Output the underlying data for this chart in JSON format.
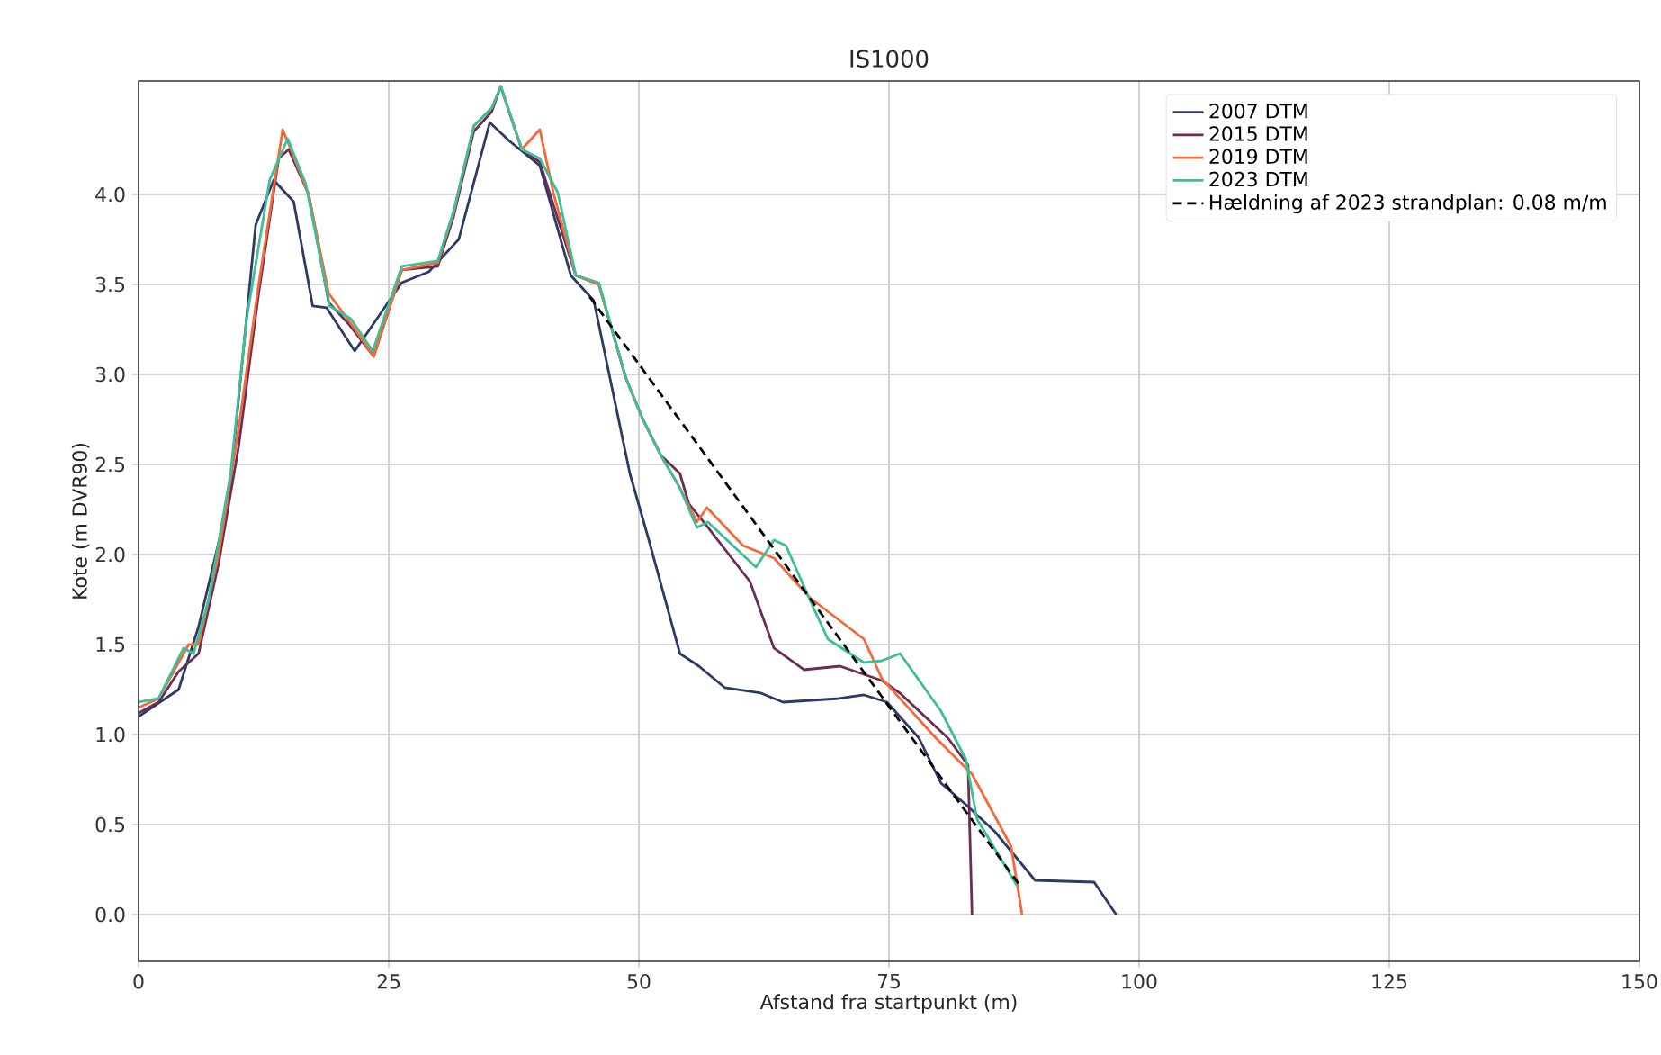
{
  "chart_data": {
    "type": "line",
    "title": "IS1000",
    "xlabel": "Afstand fra startpunkt (m)",
    "ylabel": "Kote (m DVR90)",
    "xlim": [
      0,
      150
    ],
    "ylim": [
      -0.26,
      4.63
    ],
    "xticks": [
      0,
      25,
      50,
      75,
      100,
      125,
      150
    ],
    "yticks": [
      {
        "value": 0,
        "label": "0.0"
      },
      0.5,
      {
        "value": 1,
        "label": "1.0"
      },
      1.5,
      {
        "value": 2,
        "label": "2.0"
      },
      2.5,
      {
        "value": 3,
        "label": "3.0"
      },
      3.5,
      {
        "value": 4,
        "label": "4.0"
      }
    ],
    "grid": true,
    "legend": "top right",
    "series": [
      {
        "name": "2007 DTM",
        "color": "#2e3a66",
        "x": [
          0,
          4,
          6,
          9,
          11.7,
          13.5,
          15.5,
          17.4,
          18.8,
          21.6,
          26.3,
          29,
          32,
          35.1,
          37,
          40.1,
          43.2,
          45.5,
          49.1,
          51,
          54.1,
          56,
          58.6,
          62.2,
          64.4,
          70,
          72.5,
          74.8,
          78,
          80.2,
          82.7,
          85.6,
          89.6,
          95.5,
          97.7
        ],
        "values": [
          1.1,
          1.25,
          1.6,
          2.3,
          3.83,
          4.08,
          3.96,
          3.38,
          3.37,
          3.13,
          3.51,
          3.57,
          3.75,
          4.4,
          4.3,
          4.16,
          3.55,
          3.41,
          2.45,
          2.08,
          1.45,
          1.38,
          1.26,
          1.23,
          1.18,
          1.2,
          1.22,
          1.18,
          0.98,
          0.73,
          0.61,
          0.46,
          0.19,
          0.18,
          0
        ]
      },
      {
        "name": "2015 DTM",
        "color": "#6b2d55",
        "x": [
          0,
          2,
          4,
          6,
          8,
          10,
          12,
          14,
          15,
          17,
          19,
          21,
          23.5,
          26.3,
          29.9,
          31.5,
          33.5,
          35.3,
          36.2,
          38.3,
          40.1,
          43.7,
          46,
          48.7,
          50.4,
          52.2,
          54.1,
          55,
          56.9,
          61.1,
          63.5,
          66.5,
          70.1,
          74.3,
          76.1,
          80.9,
          82.9,
          83.3
        ],
        "values": [
          1.12,
          1.18,
          1.35,
          1.45,
          1.95,
          2.6,
          3.45,
          4.2,
          4.25,
          4.0,
          3.4,
          3.28,
          3.1,
          3.58,
          3.6,
          3.88,
          4.35,
          4.46,
          4.6,
          4.25,
          4.18,
          3.55,
          3.5,
          2.98,
          2.75,
          2.55,
          2.45,
          2.28,
          2.15,
          1.85,
          1.48,
          1.36,
          1.38,
          1.3,
          1.23,
          0.98,
          0.83,
          0
        ]
      },
      {
        "name": "2019 DTM",
        "color": "#f4683a",
        "x": [
          0,
          2,
          4,
          5,
          6,
          8,
          10,
          12,
          14.4,
          15,
          17,
          19,
          21,
          23.5,
          26.3,
          29.9,
          31.5,
          33.5,
          35.3,
          36.2,
          38.3,
          40.1,
          41.5,
          43.7,
          46,
          48.7,
          50.4,
          52.2,
          54,
          55.8,
          56.8,
          60.4,
          63.5,
          67.1,
          72.5,
          74.3,
          79.7,
          83.3,
          87.2,
          88.3
        ],
        "values": [
          1.15,
          1.2,
          1.4,
          1.5,
          1.5,
          2.0,
          2.7,
          3.5,
          4.36,
          4.28,
          4.0,
          3.45,
          3.3,
          3.1,
          3.58,
          3.62,
          3.9,
          4.38,
          4.48,
          4.6,
          4.25,
          4.36,
          4.0,
          3.55,
          3.5,
          2.98,
          2.75,
          2.55,
          2.38,
          2.18,
          2.26,
          2.05,
          1.98,
          1.76,
          1.53,
          1.31,
          0.98,
          0.78,
          0.38,
          0
        ]
      },
      {
        "name": "2023 DTM",
        "color": "#3dbf96",
        "x": [
          0,
          2,
          4.5,
          5.5,
          7,
          9.2,
          10.8,
          13.1,
          14.9,
          16.7,
          19.1,
          21.2,
          23.4,
          26.3,
          29.9,
          31.5,
          33.5,
          35.3,
          36.2,
          38.3,
          40.1,
          41.9,
          43.7,
          46,
          48.7,
          50.4,
          52.2,
          54,
          55.8,
          56.9,
          61.7,
          63.5,
          64.7,
          67.4,
          68.9,
          72.5,
          74.3,
          76.1,
          80.2,
          82.7,
          83.8,
          87.8
        ],
        "values": [
          1.18,
          1.2,
          1.48,
          1.45,
          1.75,
          2.45,
          3.31,
          4.08,
          4.31,
          4.06,
          3.38,
          3.31,
          3.13,
          3.6,
          3.63,
          3.91,
          4.38,
          4.48,
          4.6,
          4.25,
          4.2,
          4.01,
          3.55,
          3.51,
          2.98,
          2.75,
          2.55,
          2.38,
          2.15,
          2.18,
          1.93,
          2.08,
          2.05,
          1.71,
          1.53,
          1.4,
          1.41,
          1.45,
          1.13,
          0.86,
          0.53,
          0.16
        ]
      },
      {
        "name": "Hældning af 2023 strandplan: 0.08 m/m",
        "color": "#000000",
        "line_style": "dashed",
        "x": [
          45.1,
          88.1
        ],
        "values": [
          3.43,
          0.16
        ]
      }
    ]
  }
}
